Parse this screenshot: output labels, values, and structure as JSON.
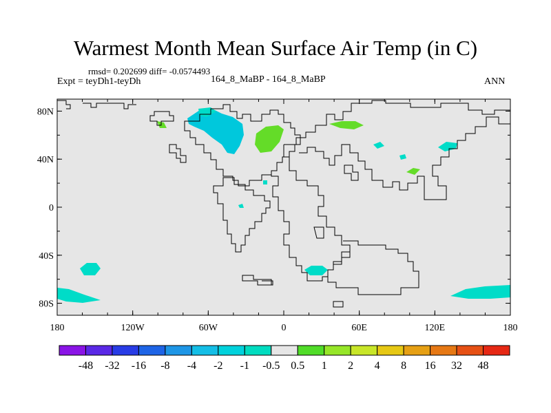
{
  "title": "Warmest Month Mean Surface Air Temp (in C)",
  "stats": "rmsd= 0.202699  diff= -0.0574493",
  "experiment": "Expt = teyDh1-teyDh",
  "case_label": "164_8_MaBP - 164_8_MaBP",
  "period": "ANN",
  "axes": {
    "x_ticks": [
      {
        "label": "180",
        "lon": -180
      },
      {
        "label": "120W",
        "lon": -120
      },
      {
        "label": "60W",
        "lon": -60
      },
      {
        "label": "0",
        "lon": 0
      },
      {
        "label": "60E",
        "lon": 60
      },
      {
        "label": "120E",
        "lon": 120
      },
      {
        "label": "180",
        "lon": 180
      }
    ],
    "y_ticks": [
      {
        "label": "80N",
        "lat": 80
      },
      {
        "label": "40N",
        "lat": 40
      },
      {
        "label": "0",
        "lat": 0
      },
      {
        "label": "40S",
        "lat": -40
      },
      {
        "label": "80S",
        "lat": -80
      }
    ]
  },
  "colors": {
    "land_ocean_background": "#e6e6e6",
    "coastline": "#000000",
    "negative_small": "#00dcc8",
    "negative_mid": "#00c8dc",
    "positive_small": "#64dc28"
  },
  "colorbar": {
    "labels": [
      "-48",
      "-32",
      "-16",
      "-8",
      "-4",
      "-2",
      "-1",
      "-0.5",
      "0.5",
      "1",
      "2",
      "4",
      "8",
      "16",
      "32",
      "48"
    ],
    "colors": [
      "#8a14e6",
      "#5a28e6",
      "#283ce6",
      "#1e64e6",
      "#1e96e6",
      "#14bee6",
      "#00d2dc",
      "#00dcc0",
      "#e6e6e6",
      "#50dc28",
      "#96e628",
      "#c8e628",
      "#e6c814",
      "#e6a014",
      "#e67814",
      "#e65014",
      "#e62814"
    ]
  }
}
